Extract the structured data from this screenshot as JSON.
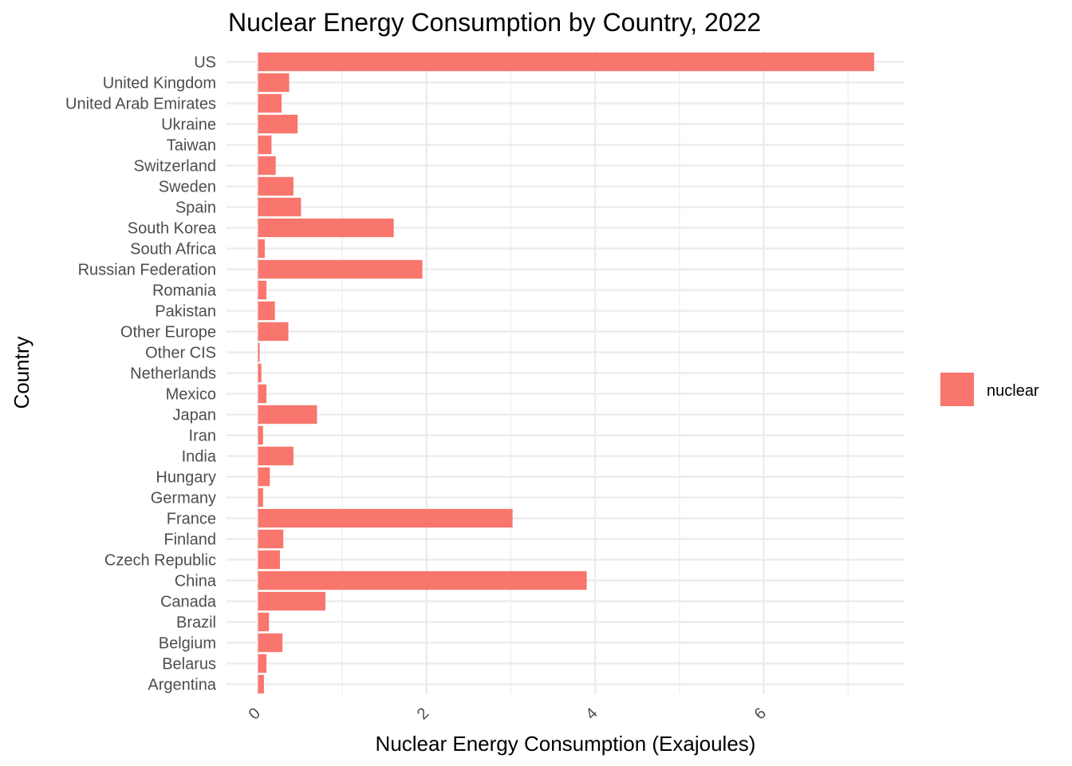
{
  "chart_data": {
    "type": "bar",
    "orientation": "horizontal",
    "title": "Nuclear Energy Consumption by Country, 2022",
    "xlabel": "Nuclear Energy Consumption (Exajoules)",
    "ylabel": "Country",
    "categories": [
      "Argentina",
      "Belarus",
      "Belgium",
      "Brazil",
      "Canada",
      "China",
      "Czech Republic",
      "Finland",
      "France",
      "Germany",
      "Hungary",
      "India",
      "Iran",
      "Japan",
      "Mexico",
      "Netherlands",
      "Other CIS",
      "Other Europe",
      "Pakistan",
      "Romania",
      "Russian Federation",
      "South Africa",
      "South Korea",
      "Spain",
      "Sweden",
      "Switzerland",
      "Taiwan",
      "Ukraine",
      "United Arab Emirates",
      "United Kingdom",
      "US"
    ],
    "series": [
      {
        "name": "nuclear",
        "color": "#F8766D",
        "values": [
          0.07,
          0.1,
          0.29,
          0.13,
          0.8,
          3.9,
          0.26,
          0.3,
          3.02,
          0.06,
          0.14,
          0.42,
          0.06,
          0.7,
          0.1,
          0.04,
          0.02,
          0.36,
          0.2,
          0.1,
          1.95,
          0.08,
          1.61,
          0.51,
          0.42,
          0.21,
          0.16,
          0.47,
          0.28,
          0.37,
          7.31
        ]
      }
    ],
    "xticks": [
      0,
      2,
      4,
      6
    ],
    "xlim": [
      0,
      7.67
    ],
    "tick_label_rotation": -45,
    "grid": true,
    "legend_position": "right"
  }
}
